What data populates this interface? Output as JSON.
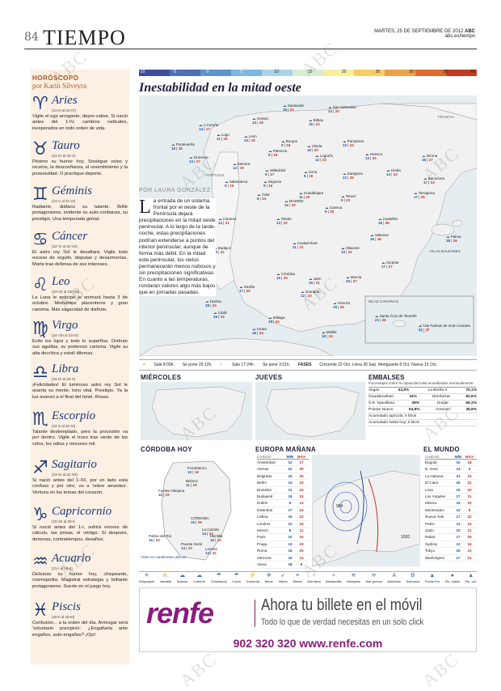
{
  "header": {
    "page_number": "84",
    "section": "TIEMPO",
    "date": "MARTES, 25 DE SEPTIEMBRE DE 2012",
    "brand": "ABC",
    "site": "abc.es/tiempo"
  },
  "horoscope": {
    "title": "HORÓSCOPO",
    "author": "por Karin Silveyra",
    "signs": [
      {
        "glyph": "♈",
        "name": "Aries",
        "dates": "(21-III al 20-IV)",
        "text": "Vigile el ego arrogante, depre-cative. Si nació antes del 1-IV, cambios radicales, inesperados en todo orden de vida."
      },
      {
        "glyph": "♉",
        "name": "Tauro",
        "dates": "(21-IV al 20-V)",
        "text": "Pésimo su humor hoy. Sosiégue celos y recelos, la desconfianza, el resentimiento y la posesividad. O practique deporte."
      },
      {
        "glyph": "♊",
        "name": "Géminis",
        "dates": "(21-V al 21-VI)",
        "text": "Radiante, diáfano su talante. Brille protagonismo, evidente su auto-confianza, su prestigio. Una temporada genial."
      },
      {
        "glyph": "♋",
        "name": "Cáncer",
        "dates": "(22-VI al 22-VII)",
        "text": "El astro rey Sol le desafiará. Vigile todo exceso de orgullo, disputas y desarmonías. Marte trae defensa de sus intereses."
      },
      {
        "glyph": "♌",
        "name": "Leo",
        "dates": "(23-VII al 23-VIII)",
        "text": "La Luna le anticipe le animará hasta 3 de octubre. Momentos placenteros y gran carisma. Más sagacidad de disfrute."
      },
      {
        "glyph": "♍",
        "name": "Virgo",
        "dates": "(24-VIII al 23-IX)",
        "text": "Evite los lujos y todo lo superfluo. Disfrute sus aguillas, su poderoso carisma. Vigile su alta decrítica y estalí dilemas."
      },
      {
        "glyph": "♎",
        "name": "Libra",
        "dates": "(24-IX al 23-X)",
        "text": "¡Felicidades! El luminoso astro rey Sol le avanta su mente, tono vital. Prestigio. Ya la luz avanzó a el final del túnel. Rosas."
      },
      {
        "glyph": "♏",
        "name": "Escorpio",
        "dates": "(24-X al 22-XI)",
        "text": "Talante destemplado, pero la procesión va por dentro. Vigile el trozo tras verde de los celos, los odios y rencores mil."
      },
      {
        "glyph": "♐",
        "name": "Sagitario",
        "dates": "(23-XI al 21-XII)",
        "text": "Si nació antes del 1-XII, por un lado está confuso y por otro, va a 'sobre amantes'. Ventura en los temas del corazón."
      },
      {
        "glyph": "♑",
        "name": "Capricornio",
        "dates": "(22-XII al 20-I)",
        "text": "Si nació antes del 1-I, sufrirá errores de cálculo, las prisas, el vértigo. Si después, demoras, contratiempos, desafíos."
      },
      {
        "glyph": "♒",
        "name": "Acuario",
        "dates": "(21-I al 19-II)",
        "text": "Delicioso su humor hoy, chispeante, cosmopolita. Magistral estrategia y brillante protagonismo. Suerte en el juego hoy."
      },
      {
        "glyph": "♓",
        "name": "Piscis",
        "dates": "(20-II al 20-III)",
        "text": "Confusión... a la orden del día. Arriesgar será 'voluntario precipicio'. ¿Engañarla ante engaños, auto-engaños? ¡Ojo!"
      }
    ]
  },
  "scale": {
    "labels": [
      "-10",
      "-5",
      "0",
      "5",
      "10",
      "15",
      "20",
      "25",
      "30",
      "35",
      "40"
    ],
    "colors": [
      "#3d4ea1",
      "#4b6fb8",
      "#5f93cf",
      "#7db6df",
      "#a9d3e9",
      "#d8ecd5",
      "#f7ef9a",
      "#f6cf60",
      "#f0a143",
      "#e06a2a",
      "#c33a1e"
    ]
  },
  "main": {
    "headline": "Inestabilidad en la mitad oeste",
    "byline": "POR LAURA GONZÁLEZ",
    "lede_drop": "L",
    "lede": "a entrada de un sistema frontal por el oeste de la Península dejará precipitaciones en la mitad oeste peninsular. A lo largo de la tarde-noche, estas precipitaciones podrían extenderse a puntos del interior peninsular, aunque de forma más débil. En la mitad este peninsular, los cielos permanecerán menos nubosos y sin precipitaciones significativas. En cuanto a las temperaturas, rondarán valores algo más bajos que en jornadas pasadas."
  },
  "map_labels": {
    "france": "FRANCIA",
    "portugal": "PORTUGAL",
    "baleares": "ISLAS BALEARES",
    "canarias": "ISLAS CANARIAS"
  },
  "cities": [
    {
      "name": "Santander",
      "min": "15",
      "max": "21"
    },
    {
      "name": "San Sebastián",
      "min": "14",
      "max": "20"
    },
    {
      "name": "Oviedo",
      "min": "13",
      "max": "18"
    },
    {
      "name": "Bilbao",
      "min": "15",
      "max": "22"
    },
    {
      "name": "A Coruña",
      "min": "14",
      "max": "17"
    },
    {
      "name": "Lugo",
      "min": "11",
      "max": "15"
    },
    {
      "name": "León",
      "min": "10",
      "max": "16"
    },
    {
      "name": "Burgos",
      "min": "9",
      "max": "18"
    },
    {
      "name": "Vitoria",
      "min": "10",
      "max": "20"
    },
    {
      "name": "Pamplona",
      "min": "12",
      "max": "23"
    },
    {
      "name": "Pontevedra",
      "min": "16",
      "max": "18"
    },
    {
      "name": "Ourense",
      "min": "14",
      "max": "17"
    },
    {
      "name": "Palencia",
      "min": "9",
      "max": "18"
    },
    {
      "name": "Logroño",
      "min": "12",
      "max": "23"
    },
    {
      "name": "Huesca",
      "min": "13",
      "max": "25"
    },
    {
      "name": "Girona",
      "min": "15",
      "max": "27"
    },
    {
      "name": "Zamora",
      "min": "12",
      "max": "19"
    },
    {
      "name": "Valladolid",
      "min": "9",
      "max": "17"
    },
    {
      "name": "Soria",
      "min": "8",
      "max": "16"
    },
    {
      "name": "Zaragoza",
      "min": "13",
      "max": "25"
    },
    {
      "name": "Lleida",
      "min": "14",
      "max": "24"
    },
    {
      "name": "Barcelona",
      "min": "17",
      "max": "24"
    },
    {
      "name": "Tarragona",
      "min": "17",
      "max": "25"
    },
    {
      "name": "Salamanca",
      "min": "9",
      "max": "16"
    },
    {
      "name": "Segovia",
      "min": "9",
      "max": "16"
    },
    {
      "name": "Guadalajara",
      "min": "11",
      "max": "20"
    },
    {
      "name": "Teruel",
      "min": "9",
      "max": "23"
    },
    {
      "name": "Ávila",
      "min": "8",
      "max": "14"
    },
    {
      "name": "MADRID",
      "min": "12",
      "max": "20"
    },
    {
      "name": "Cuenca",
      "min": "9",
      "max": "20"
    },
    {
      "name": "Castellón",
      "min": "16",
      "max": "26"
    },
    {
      "name": "Cáceres",
      "min": "14",
      "max": "21"
    },
    {
      "name": "Toledo",
      "min": "13",
      "max": "22"
    },
    {
      "name": "Valencia",
      "min": "16",
      "max": "26"
    },
    {
      "name": "Palma",
      "min": "18",
      "max": "26"
    },
    {
      "name": "Badajoz",
      "min": "14",
      "max": "22"
    },
    {
      "name": "Ciudad Real",
      "min": "11",
      "max": "21"
    },
    {
      "name": "Albacete",
      "min": "10",
      "max": "21"
    },
    {
      "name": "Alicante",
      "min": "17",
      "max": "27"
    },
    {
      "name": "Córdoba",
      "min": "15",
      "max": "25"
    },
    {
      "name": "Jaén",
      "min": "15",
      "max": "21"
    },
    {
      "name": "Murcia",
      "min": "15",
      "max": "27"
    },
    {
      "name": "Sevilla",
      "min": "17",
      "max": "25"
    },
    {
      "name": "Granada",
      "min": "12",
      "max": "23"
    },
    {
      "name": "Huelva",
      "min": "18",
      "max": "24"
    },
    {
      "name": "Cádiz",
      "min": "19",
      "max": "24"
    },
    {
      "name": "Málaga",
      "min": "16",
      "max": "24"
    },
    {
      "name": "Almería",
      "min": "19",
      "max": "26"
    },
    {
      "name": "Ceuta",
      "min": "18",
      "max": "24"
    },
    {
      "name": "Melilla",
      "min": "18",
      "max": "24"
    },
    {
      "name": "Santa Cruz de Tenerife",
      "min": "21",
      "max": "26"
    },
    {
      "name": "Las Palmas de Gran Canaria",
      "min": "22",
      "max": "27"
    }
  ],
  "sun_moon": {
    "sun_out": "Sale 8:09h.",
    "sun_in": "Se pone 20:12h.",
    "moon_out": "Sale 17:24h.",
    "moon_in": "Se pone 3:21h.",
    "phases_label": "FASES",
    "phases": "Creciente 22 Oct.   Llena 30 Sep.   Menguante 8 Oct.   Nueva 15 Oct."
  },
  "mini_maps": {
    "wed": "MIÉRCOLES",
    "thu": "JUEVES",
    "cordoba": "CÓRDOBA HOY",
    "europe": "EUROPA MAÑANA",
    "world": "EL MUNDO"
  },
  "embalses": {
    "title": "EMBALSES",
    "subtitle": "Porcentajes sobre la capacidad total actualizados semanalmente",
    "rows": [
      {
        "name": "Vegas",
        "pct": "43,6%",
        "name2": "La Breña II",
        "pct2": "76,1%"
      },
      {
        "name": "Guadalmellato",
        "pct": "34%",
        "name2": "Bembézar",
        "pct2": "82,6%"
      },
      {
        "name": "S.R. Navallana",
        "pct": "38%",
        "name2": "Iznájar",
        "pct2": "66,3%"
      },
      {
        "name": "Puente Nuevo",
        "pct": "54,9%",
        "name2": "Arenoso",
        "pct2": "38,9%"
      }
    ],
    "total_label": "Acumulado agrícola: 0 litros",
    "total_sub": "Acumulado hasta hoy: 0 litros"
  },
  "cordoba_towns": [
    {
      "name": "Pozoblanco",
      "min": "10",
      "max": "18"
    },
    {
      "name": "Bélmez",
      "min": "11",
      "max": "19"
    },
    {
      "name": "Fuente Obejuna",
      "min": "11",
      "max": "19"
    },
    {
      "name": "CÓRDOBA",
      "min": "15",
      "max": "25"
    },
    {
      "name": "La Carlota",
      "min": "14",
      "max": "24"
    },
    {
      "name": "Palma del Río",
      "min": "15",
      "max": "24"
    },
    {
      "name": "Montilla",
      "min": "15",
      "max": "24"
    },
    {
      "name": "Puente Genil",
      "min": "14",
      "max": "23"
    },
    {
      "name": "Lucena",
      "min": "14",
      "max": "22"
    }
  ],
  "cordoba_source": "Visite en canalmeteo.abc.es",
  "europe_table": {
    "headers": [
      "CIUDAD",
      "MÍN",
      "MÁX"
    ],
    "rows": [
      [
        "Ámsterdam",
        "12",
        "17"
      ],
      [
        "Atenas",
        "22",
        "29"
      ],
      [
        "Belgrado",
        "16",
        "26"
      ],
      [
        "Berlín",
        "13",
        "23"
      ],
      [
        "Bruselas",
        "11",
        "16"
      ],
      [
        "Budapest",
        "16",
        "24"
      ],
      [
        "Dublín",
        "8",
        "13"
      ],
      [
        "Estambul",
        "17",
        "24"
      ],
      [
        "Lisboa",
        "16",
        "23"
      ],
      [
        "Londres",
        "10",
        "16"
      ],
      [
        "Moscú",
        "8",
        "11"
      ],
      [
        "París",
        "10",
        "16"
      ],
      [
        "Praga",
        "13",
        "23"
      ],
      [
        "Roma",
        "16",
        "25"
      ],
      [
        "Varsovia",
        "16",
        "14"
      ],
      [
        "Viena",
        "18",
        "9"
      ]
    ]
  },
  "europe_pressure": [
    "984",
    "1020"
  ],
  "world_table": {
    "headers": [
      "CIUDAD",
      "MÍN",
      "MÁX"
    ],
    "rows": [
      [
        "Bogotá",
        "10",
        "18"
      ],
      [
        "B. Aires",
        "14",
        "5"
      ],
      [
        "La Habana",
        "31",
        "23"
      ],
      [
        "El Cairo",
        "20",
        "31"
      ],
      [
        "Lima",
        "16",
        "20"
      ],
      [
        "Los Ángeles",
        "17",
        "21"
      ],
      [
        "México",
        "15",
        "20"
      ],
      [
        "Montevideo",
        "13",
        "8"
      ],
      [
        "Nueva York",
        "17",
        "22"
      ],
      [
        "Pekín",
        "14",
        "24"
      ],
      [
        "Quito",
        "10",
        "21"
      ],
      [
        "Rabat",
        "17",
        "25"
      ],
      [
        "Sydney",
        "12",
        "16"
      ],
      [
        "Tokyo",
        "19",
        "23"
      ],
      [
        "Washington",
        "17",
        "21"
      ]
    ]
  },
  "legend": [
    "Despejado",
    "Variable",
    "Nuboso",
    "Cubierto",
    "Chubascos",
    "Lluvia",
    "Tormenta",
    "Nieve",
    "Viento",
    "Niebla",
    "Mar llana",
    "Marejadilla",
    "Marejada",
    "Mar gruesa",
    "Anticiclón",
    "Borrasca",
    "Frente frío",
    "Fte. cálido",
    "Fte. ocl."
  ],
  "ad": {
    "logo": "renfe",
    "headline": "Ahora tu billete en el móvil",
    "sub": "Todo lo que de verdad necesitas en un solo click",
    "phone": "902 320 320 www.renfe.com",
    "brand_color": "#8a1c7c"
  },
  "watermark": "ABC"
}
